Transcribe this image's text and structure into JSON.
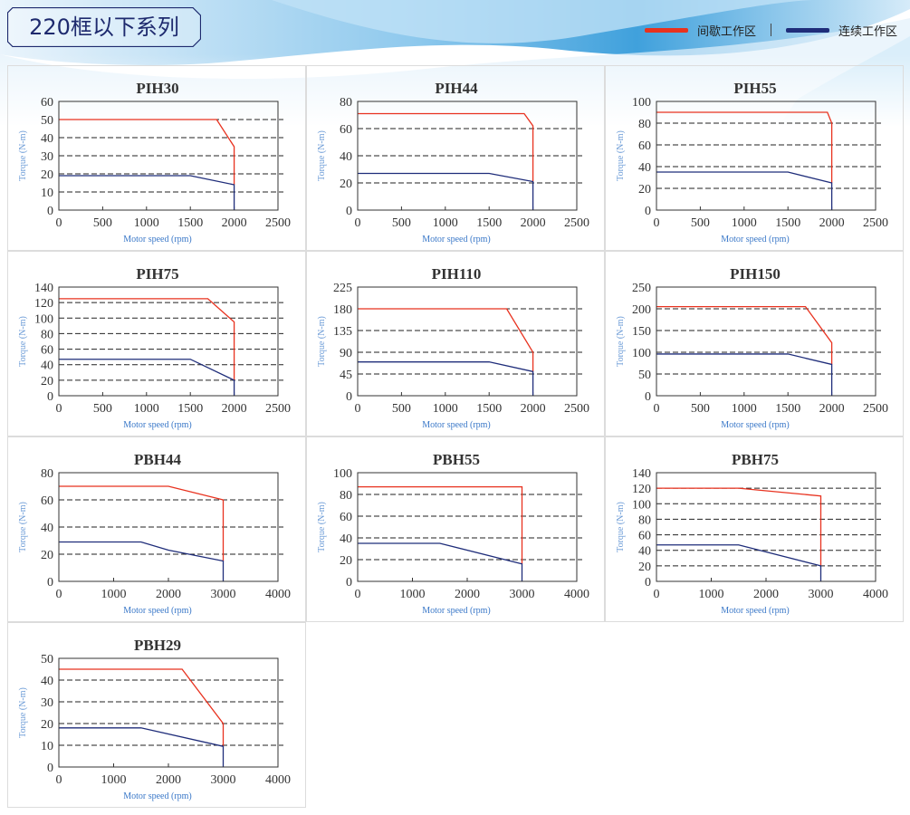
{
  "header": {
    "title": "220框以下系列"
  },
  "legend": {
    "items": [
      {
        "label": "间歇工作区",
        "color": "#e8321f"
      },
      {
        "label": "连续工作区",
        "color": "#1f2d7a"
      }
    ]
  },
  "chart_data": [
    {
      "type": "line",
      "title": "PIH30",
      "xlabel": "Motor speed (rpm)",
      "ylabel": "Torque (N-m)",
      "xlim": [
        0,
        2500
      ],
      "ylim": [
        0,
        60
      ],
      "xticks": [
        "0",
        "500",
        "1000",
        "1500",
        "2000",
        "2500"
      ],
      "yticks": [
        "0",
        "10",
        "20",
        "30",
        "40",
        "50",
        "60"
      ],
      "grid": "horizontal dashed",
      "series": [
        {
          "color": "#e8321f",
          "points": [
            [
              0,
              50
            ],
            [
              1800,
              50
            ],
            [
              2000,
              35
            ],
            [
              2000,
              14
            ]
          ]
        },
        {
          "color": "#1f2d7a",
          "points": [
            [
              0,
              19
            ],
            [
              1500,
              19
            ],
            [
              2000,
              14
            ],
            [
              2000,
              0
            ]
          ]
        }
      ]
    },
    {
      "type": "line",
      "title": "PIH44",
      "xlabel": "Motor speed (rpm)",
      "ylabel": "Torque (N-m)",
      "xlim": [
        0,
        2500
      ],
      "ylim": [
        0,
        80
      ],
      "xticks": [
        "0",
        "500",
        "1000",
        "1500",
        "2000",
        "2500"
      ],
      "yticks": [
        "0",
        "20",
        "40",
        "60",
        "80"
      ],
      "grid": "horizontal dashed",
      "series": [
        {
          "color": "#e8321f",
          "points": [
            [
              0,
              71
            ],
            [
              1900,
              71
            ],
            [
              2000,
              62
            ],
            [
              2000,
              21
            ]
          ]
        },
        {
          "color": "#1f2d7a",
          "points": [
            [
              0,
              27
            ],
            [
              1500,
              27
            ],
            [
              2000,
              21
            ],
            [
              2000,
              0
            ]
          ]
        }
      ]
    },
    {
      "type": "line",
      "title": "PIH55",
      "xlabel": "Motor speed (rpm)",
      "ylabel": "Torque (N-m)",
      "xlim": [
        0,
        2500
      ],
      "ylim": [
        0,
        100
      ],
      "xticks": [
        "0",
        "500",
        "1000",
        "1500",
        "2000",
        "2500"
      ],
      "yticks": [
        "0",
        "20",
        "40",
        "60",
        "80",
        "100"
      ],
      "grid": "horizontal dashed",
      "series": [
        {
          "color": "#e8321f",
          "points": [
            [
              0,
              90
            ],
            [
              1950,
              90
            ],
            [
              2000,
              80
            ],
            [
              2000,
              25
            ]
          ]
        },
        {
          "color": "#1f2d7a",
          "points": [
            [
              0,
              35
            ],
            [
              1500,
              35
            ],
            [
              2000,
              25
            ],
            [
              2000,
              0
            ]
          ]
        }
      ]
    },
    {
      "type": "line",
      "title": "PIH75",
      "xlabel": "Motor speed (rpm)",
      "ylabel": "Torque (N-m)",
      "xlim": [
        0,
        2500
      ],
      "ylim": [
        0,
        140
      ],
      "xticks": [
        "0",
        "500",
        "1000",
        "1500",
        "2000",
        "2500"
      ],
      "yticks": [
        "0",
        "20",
        "40",
        "60",
        "80",
        "100",
        "120",
        "140"
      ],
      "grid": "horizontal dashed",
      "series": [
        {
          "color": "#e8321f",
          "points": [
            [
              0,
              125
            ],
            [
              1700,
              125
            ],
            [
              2000,
              95
            ],
            [
              2000,
              20
            ]
          ]
        },
        {
          "color": "#1f2d7a",
          "points": [
            [
              0,
              47
            ],
            [
              1500,
              47
            ],
            [
              2000,
              20
            ],
            [
              2000,
              0
            ]
          ]
        }
      ]
    },
    {
      "type": "line",
      "title": "PIH110",
      "xlabel": "Motor speed (rpm)",
      "ylabel": "Torque (N-m)",
      "xlim": [
        0,
        2500
      ],
      "ylim": [
        0,
        225
      ],
      "xticks": [
        "0",
        "500",
        "1000",
        "1500",
        "2000",
        "2500"
      ],
      "yticks": [
        "0",
        "45",
        "90",
        "135",
        "180",
        "225"
      ],
      "grid": "horizontal dashed",
      "series": [
        {
          "color": "#e8321f",
          "points": [
            [
              0,
              180
            ],
            [
              1700,
              180
            ],
            [
              2000,
              90
            ],
            [
              2000,
              50
            ]
          ]
        },
        {
          "color": "#1f2d7a",
          "points": [
            [
              0,
              70
            ],
            [
              1500,
              70
            ],
            [
              2000,
              50
            ],
            [
              2000,
              0
            ]
          ]
        }
      ]
    },
    {
      "type": "line",
      "title": "PIH150",
      "xlabel": "Motor speed (rpm)",
      "ylabel": "Torque (N-m)",
      "xlim": [
        0,
        2500
      ],
      "ylim": [
        0,
        250
      ],
      "xticks": [
        "0",
        "500",
        "1000",
        "1500",
        "2000",
        "2500"
      ],
      "yticks": [
        "0",
        "50",
        "100",
        "150",
        "200",
        "250"
      ],
      "grid": "horizontal dashed",
      "series": [
        {
          "color": "#e8321f",
          "points": [
            [
              0,
              205
            ],
            [
              1700,
              205
            ],
            [
              2000,
              122
            ],
            [
              2000,
              72
            ]
          ]
        },
        {
          "color": "#1f2d7a",
          "points": [
            [
              0,
              96
            ],
            [
              1500,
              96
            ],
            [
              2000,
              72
            ],
            [
              2000,
              0
            ]
          ]
        }
      ]
    },
    {
      "type": "line",
      "title": "PBH44",
      "xlabel": "Motor speed (rpm)",
      "ylabel": "Torque (N-m)",
      "xlim": [
        0,
        4000
      ],
      "ylim": [
        0,
        80
      ],
      "xticks": [
        "0",
        "1000",
        "2000",
        "3000",
        "4000"
      ],
      "yticks": [
        "0",
        "20",
        "40",
        "60",
        "80"
      ],
      "grid": "horizontal dashed",
      "series": [
        {
          "color": "#e8321f",
          "points": [
            [
              0,
              70
            ],
            [
              2000,
              70
            ],
            [
              3000,
              60
            ],
            [
              3000,
              15
            ]
          ]
        },
        {
          "color": "#1f2d7a",
          "points": [
            [
              0,
              29
            ],
            [
              1500,
              29
            ],
            [
              2000,
              23
            ],
            [
              3000,
              15
            ],
            [
              3000,
              0
            ]
          ]
        }
      ]
    },
    {
      "type": "line",
      "title": "PBH55",
      "xlabel": "Motor speed (rpm)",
      "ylabel": "Torque (N-m)",
      "xlim": [
        0,
        4000
      ],
      "ylim": [
        0,
        100
      ],
      "xticks": [
        "0",
        "1000",
        "2000",
        "3000",
        "4000"
      ],
      "yticks": [
        "0",
        "20",
        "40",
        "60",
        "80",
        "100"
      ],
      "grid": "horizontal dashed",
      "series": [
        {
          "color": "#e8321f",
          "points": [
            [
              0,
              87
            ],
            [
              3000,
              87
            ],
            [
              3000,
              16
            ]
          ]
        },
        {
          "color": "#1f2d7a",
          "points": [
            [
              0,
              35
            ],
            [
              1500,
              35
            ],
            [
              3000,
              16
            ],
            [
              3000,
              0
            ]
          ]
        }
      ]
    },
    {
      "type": "line",
      "title": "PBH75",
      "xlabel": "Motor speed (rpm)",
      "ylabel": "Torque (N-m)",
      "xlim": [
        0,
        4000
      ],
      "ylim": [
        0,
        140
      ],
      "xticks": [
        "0",
        "1000",
        "2000",
        "3000",
        "4000"
      ],
      "yticks": [
        "0",
        "20",
        "40",
        "60",
        "80",
        "100",
        "120",
        "140"
      ],
      "grid": "horizontal dashed",
      "series": [
        {
          "color": "#e8321f",
          "points": [
            [
              0,
              120
            ],
            [
              1500,
              120
            ],
            [
              3000,
              110
            ],
            [
              3000,
              20
            ]
          ]
        },
        {
          "color": "#1f2d7a",
          "points": [
            [
              0,
              47
            ],
            [
              1500,
              47
            ],
            [
              3000,
              20
            ],
            [
              3000,
              0
            ]
          ]
        }
      ]
    },
    {
      "type": "line",
      "title": "PBH29",
      "xlabel": "Motor speed (rpm)",
      "ylabel": "Torque (N-m)",
      "xlim": [
        0,
        4000
      ],
      "ylim": [
        0,
        50
      ],
      "xticks": [
        "0",
        "1000",
        "2000",
        "3000",
        "4000"
      ],
      "yticks": [
        "0",
        "10",
        "20",
        "30",
        "40",
        "50"
      ],
      "grid": "horizontal dashed",
      "series": [
        {
          "color": "#e8321f",
          "points": [
            [
              0,
              45
            ],
            [
              2250,
              45
            ],
            [
              3000,
              20
            ],
            [
              3000,
              9.5
            ]
          ]
        },
        {
          "color": "#1f2d7a",
          "points": [
            [
              0,
              18
            ],
            [
              1500,
              18
            ],
            [
              3000,
              9.5
            ],
            [
              3000,
              0
            ]
          ]
        }
      ]
    }
  ]
}
